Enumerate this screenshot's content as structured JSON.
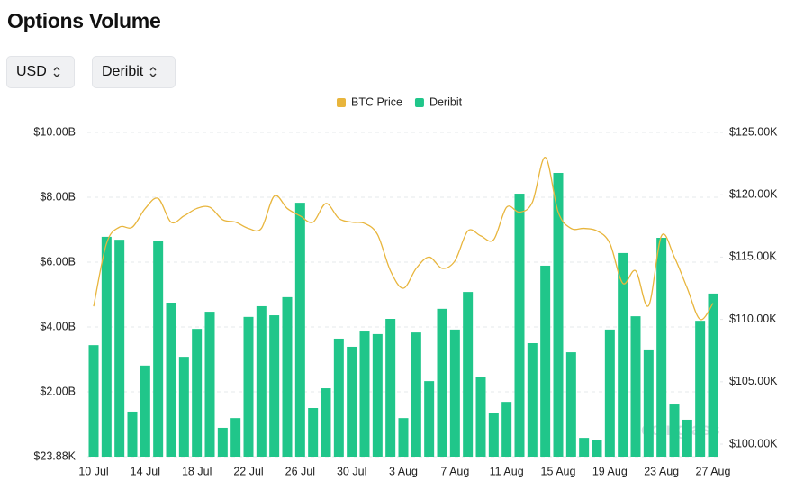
{
  "title": "Options Volume",
  "controls": [
    "USD",
    "Deribit"
  ],
  "chart_data": {
    "type": "bar",
    "watermark": "coinglass",
    "categories": [
      "10 Jul",
      null,
      null,
      null,
      "14 Jul",
      null,
      null,
      null,
      "18 Jul",
      null,
      null,
      null,
      "22 Jul",
      null,
      null,
      null,
      "26 Jul",
      null,
      null,
      null,
      "30 Jul",
      null,
      null,
      null,
      "3 Aug",
      null,
      null,
      null,
      "7 Aug",
      null,
      null,
      null,
      "11 Aug",
      null,
      null,
      null,
      "15 Aug",
      null,
      null,
      null,
      "19 Aug",
      null,
      null,
      null,
      "23 Aug",
      null,
      null,
      null,
      "27 Aug"
    ],
    "series": [
      {
        "name": "BTC Price",
        "color": "#e8b53c",
        "type": "line",
        "axis": "y2",
        "values": [
          111050,
          116100,
          117400,
          117400,
          118900,
          119700,
          117800,
          118300,
          118900,
          119000,
          118000,
          117800,
          117300,
          117300,
          119900,
          118900,
          118300,
          117800,
          119300,
          118100,
          117800,
          117700,
          116800,
          113900,
          112500,
          114100,
          115000,
          114100,
          114700,
          117100,
          116700,
          116400,
          119000,
          118600,
          119400,
          123000,
          118600,
          117300,
          117300,
          117100,
          116100,
          112900,
          113900,
          111100,
          116700,
          115000,
          112500,
          110000,
          111300
        ]
      },
      {
        "name": "Deribit",
        "color": "#20c68a",
        "type": "bar",
        "values": [
          3440000000,
          6780000000,
          6690000000,
          1390000000,
          2810000000,
          6640000000,
          4750000000,
          3080000000,
          3940000000,
          4470000000,
          890000000,
          1190000000,
          4310000000,
          4640000000,
          4360000000,
          4920000000,
          7830000000,
          1500000000,
          2110000000,
          3640000000,
          3390000000,
          3860000000,
          3780000000,
          4250000000,
          1190000000,
          3830000000,
          2330000000,
          4560000000,
          3920000000,
          5080000000,
          2470000000,
          1360000000,
          1690000000,
          8110000000,
          3500000000,
          5890000000,
          8750000000,
          3220000000,
          580000000,
          500000000,
          3920000000,
          6280000000,
          4330000000,
          3280000000,
          6750000000,
          1610000000,
          1140000000,
          4190000000,
          5030000000
        ]
      }
    ],
    "ylim": [
      0,
      10000000000
    ],
    "yticks": [
      {
        "value": 23880,
        "label": "$23.88K"
      },
      {
        "value": 2000000000,
        "label": "$2.00B"
      },
      {
        "value": 4000000000,
        "label": "$4.00B"
      },
      {
        "value": 6000000000,
        "label": "$6.00B"
      },
      {
        "value": 8000000000,
        "label": "$8.00B"
      },
      {
        "value": 10000000000,
        "label": "$10.00B"
      }
    ],
    "y2lim": [
      98990,
      125000
    ],
    "y2ticks": [
      {
        "value": 100000,
        "label": "$100.00K"
      },
      {
        "value": 105000,
        "label": "$105.00K"
      },
      {
        "value": 110000,
        "label": "$110.00K"
      },
      {
        "value": 115000,
        "label": "$115.00K"
      },
      {
        "value": 120000,
        "label": "$120.00K"
      },
      {
        "value": 125000,
        "label": "$125.00K"
      }
    ],
    "grid": true,
    "legend": "top"
  }
}
